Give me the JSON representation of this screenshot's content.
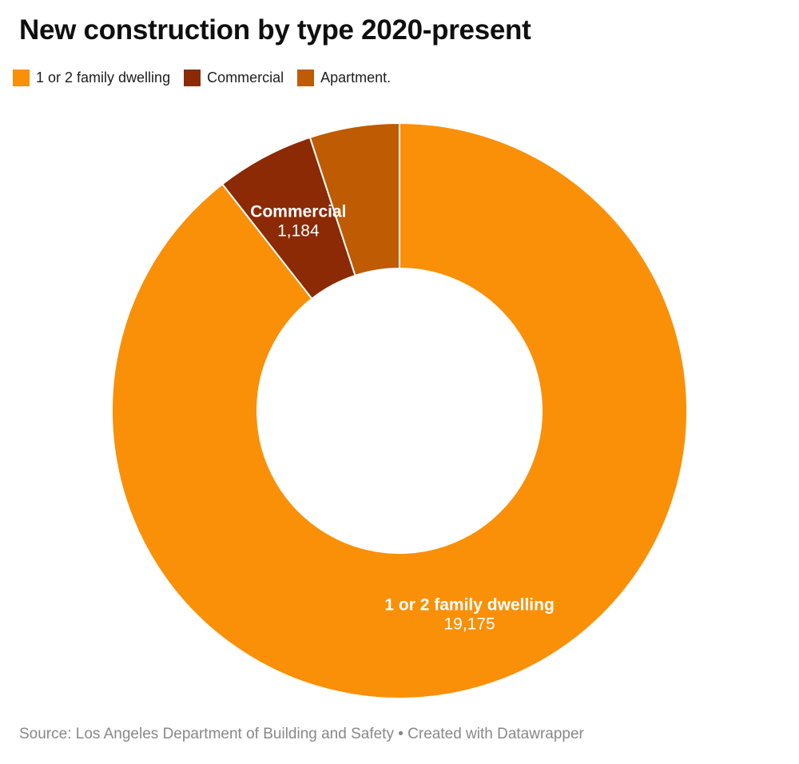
{
  "header": {
    "title": "New construction by type 2020-present"
  },
  "legend": {
    "position": "top",
    "items": [
      {
        "label": "1 or 2 family dwelling",
        "color": "#F99008"
      },
      {
        "label": "Commercial",
        "color": "#8B2A05"
      },
      {
        "label": "Apartment.",
        "color": "#BE5B03"
      }
    ]
  },
  "chart_data": {
    "type": "pie",
    "variant": "donut",
    "title": "New construction by type 2020-present",
    "start_angle_deg": 0,
    "direction": "clockwise",
    "inner_radius_ratio": 0.494,
    "legend_position": "top",
    "series": [
      {
        "label": "1 or 2 family dwelling",
        "value": 19175,
        "display_value": "19,175",
        "color": "#F99008",
        "label_shown_on_slice": true,
        "estimated": false
      },
      {
        "label": "Commercial",
        "value": 1184,
        "display_value": "1,184",
        "color": "#8B2A05",
        "label_shown_on_slice": true,
        "estimated": false
      },
      {
        "label": "Apartment.",
        "value": 1080,
        "display_value": null,
        "color": "#BE5B03",
        "label_shown_on_slice": false,
        "estimated": true
      }
    ],
    "slice_separator_color": "#ffffff"
  },
  "footer": {
    "source_text": "Source: Los Angeles Department of Building and Safety • Created with Datawrapper"
  }
}
